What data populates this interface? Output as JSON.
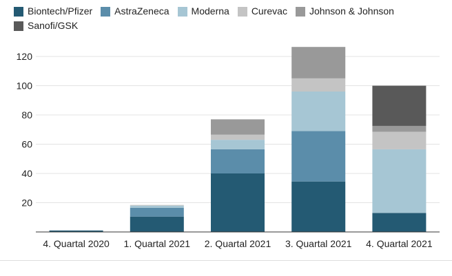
{
  "chart_data": {
    "type": "bar",
    "stacked": true,
    "title": "",
    "xlabel": "",
    "ylabel": "",
    "ylim": [
      0,
      128
    ],
    "yticks": [
      20,
      40,
      60,
      80,
      100,
      120
    ],
    "grid": true,
    "legend_position": "top-left",
    "categories": [
      "4. Quartal 2020",
      "1. Quartal 2021",
      "2. Quartal 2021",
      "3. Quartal 2021",
      "4. Quartal 2021"
    ],
    "series": [
      {
        "name": "Biontech/Pfizer",
        "color": "#245a73",
        "values": [
          1,
          10.5,
          40,
          34.5,
          13
        ]
      },
      {
        "name": "AstraZeneca",
        "color": "#5b8daa",
        "values": [
          0,
          6,
          16.5,
          34.5,
          0
        ]
      },
      {
        "name": "Moderna",
        "color": "#a6c6d4",
        "values": [
          0,
          1.5,
          6.5,
          27,
          43.5
        ]
      },
      {
        "name": "Curevac",
        "color": "#c4c4c4",
        "values": [
          0,
          0.5,
          3.5,
          9,
          12
        ]
      },
      {
        "name": "Johnson & Johnson",
        "color": "#999999",
        "values": [
          0,
          0,
          10.5,
          21.5,
          4
        ]
      },
      {
        "name": "Sanofi/GSK",
        "color": "#595959",
        "values": [
          0,
          0,
          0,
          0,
          27.5
        ]
      }
    ]
  }
}
